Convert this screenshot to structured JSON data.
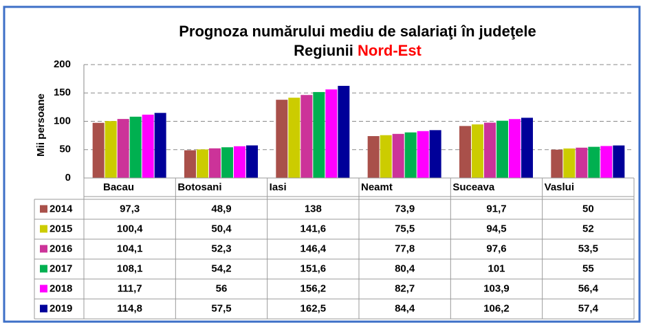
{
  "chart_data": {
    "type": "bar",
    "title": "Prognoza numărului mediu de salariaţi în judeţele",
    "title_line2": "Regiunii",
    "title_highlight": "Nord-Est",
    "title_highlight_color": "#ff0000",
    "y_label": "Mii persoane",
    "categories": [
      "Bacau",
      "Botosani",
      "Iasi",
      "Neamt",
      "Suceava",
      "Vaslui"
    ],
    "ylim": [
      0,
      200
    ],
    "yticks": [
      0,
      50,
      100,
      150,
      200
    ],
    "grid": true,
    "series": [
      {
        "name": "2014",
        "color": "#a9504a",
        "values": [
          97.3,
          48.9,
          138,
          73.9,
          91.7,
          50
        ],
        "value_labels": [
          "97,3",
          "48,9",
          "138",
          "73,9",
          "91,7",
          "50"
        ]
      },
      {
        "name": "2015",
        "color": "#cccc00",
        "values": [
          100.4,
          50.4,
          141.6,
          75.5,
          94.5,
          52
        ],
        "value_labels": [
          "100,4",
          "50,4",
          "141,6",
          "75,5",
          "94,5",
          "52"
        ]
      },
      {
        "name": "2016",
        "color": "#cc3399",
        "values": [
          104.1,
          52.3,
          146.4,
          77.8,
          97.6,
          53.5
        ],
        "value_labels": [
          "104,1",
          "52,3",
          "146,4",
          "77,8",
          "97,6",
          "53,5"
        ]
      },
      {
        "name": "2017",
        "color": "#00b050",
        "values": [
          108.1,
          54.2,
          151.6,
          80.4,
          101,
          55
        ],
        "value_labels": [
          "108,1",
          "54,2",
          "151,6",
          "80,4",
          "101",
          "55"
        ]
      },
      {
        "name": "2018",
        "color": "#ff00ff",
        "values": [
          111.7,
          56,
          156.2,
          82.7,
          103.9,
          56.4
        ],
        "value_labels": [
          "111,7",
          "56",
          "156,2",
          "82,7",
          "103,9",
          "56,4"
        ]
      },
      {
        "name": "2019",
        "color": "#000099",
        "values": [
          114.8,
          57.5,
          162.5,
          84.4,
          106.2,
          57.4
        ],
        "value_labels": [
          "114,8",
          "57,5",
          "162,5",
          "84,4",
          "106,2",
          "57,4"
        ]
      }
    ]
  }
}
